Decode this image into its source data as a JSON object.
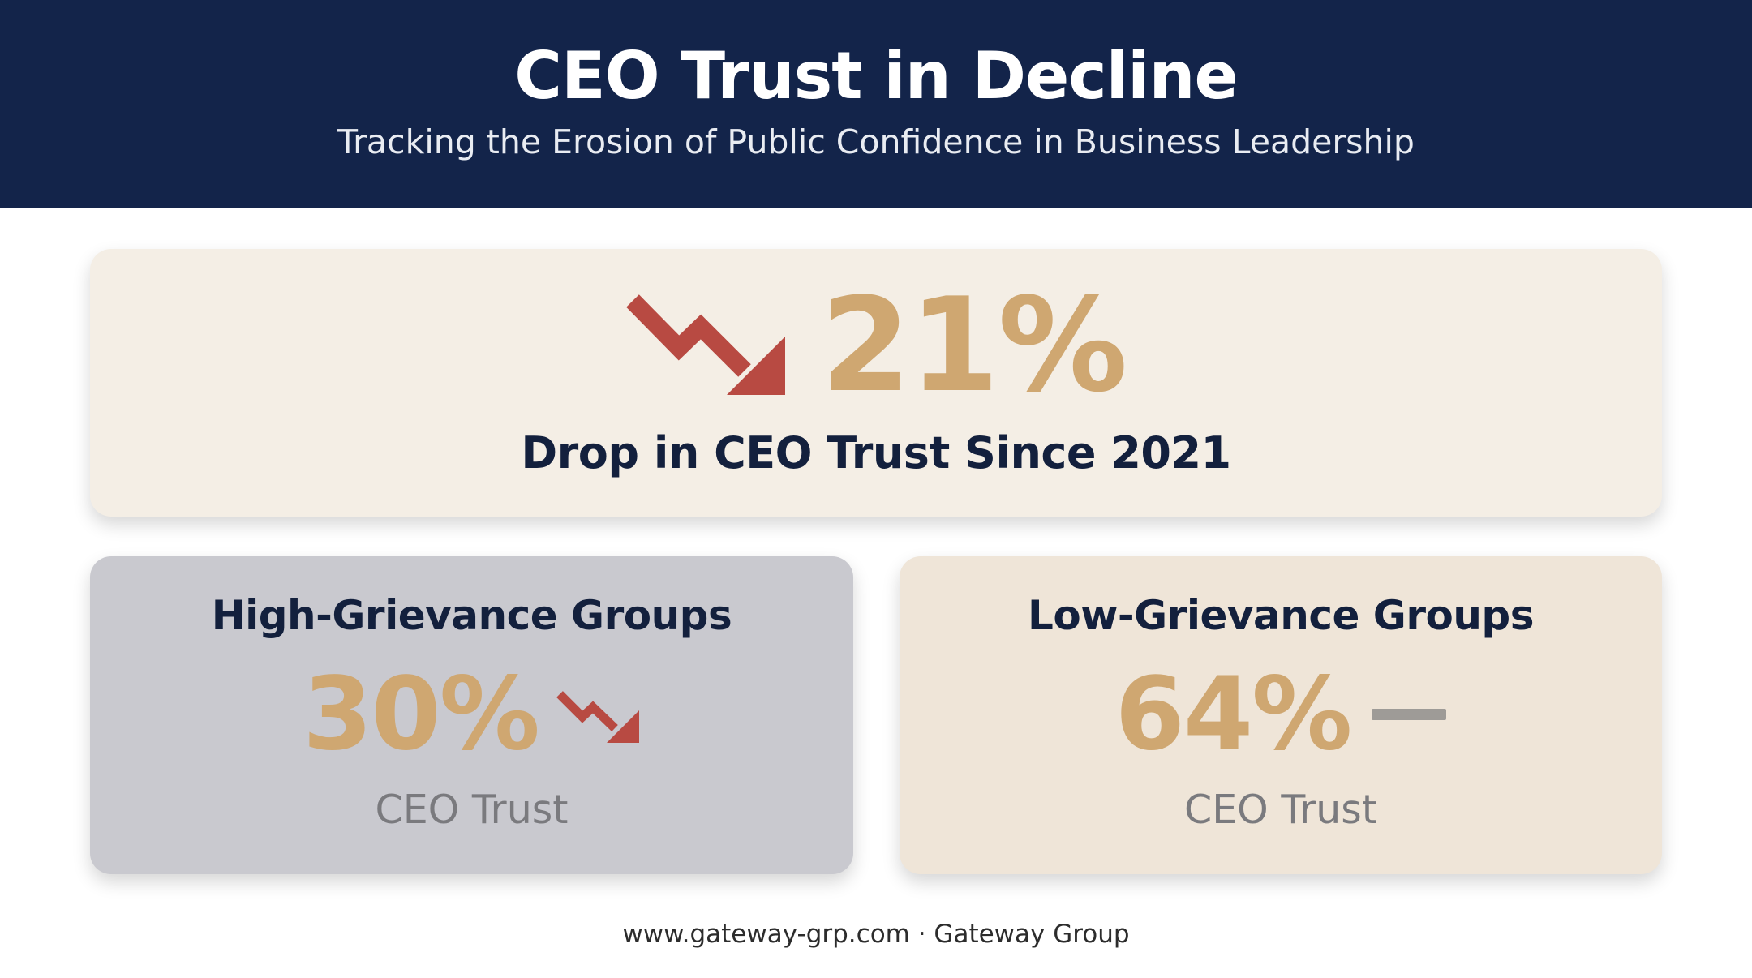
{
  "header": {
    "title": "CEO Trust in Decline",
    "subtitle": "Tracking the Erosion of Public Confidence in Business Leadership"
  },
  "headline_stat": {
    "value": "21%",
    "caption": "Drop in CEO Trust Since 2021",
    "trend_icon": "trend-down-arrow-icon"
  },
  "groups": [
    {
      "title": "High-Grievance Groups",
      "value": "30%",
      "label": "CEO Trust",
      "trend_icon": "trend-down-arrow-icon"
    },
    {
      "title": "Low-Grievance Groups",
      "value": "64%",
      "label": "CEO Trust",
      "trend_icon": "flat-dash-icon"
    }
  ],
  "footer": {
    "text": "www.gateway-grp.com · Gateway Group"
  },
  "colors": {
    "header_bg": "#13244a",
    "accent_gold": "#cfa771",
    "decline_red": "#b84a42",
    "neutral_gray": "#9e9b97",
    "headline_card_bg": "#f4eee5",
    "high_grievance_bg": "#c9c9cf",
    "low_grievance_bg": "#efe5d8"
  }
}
